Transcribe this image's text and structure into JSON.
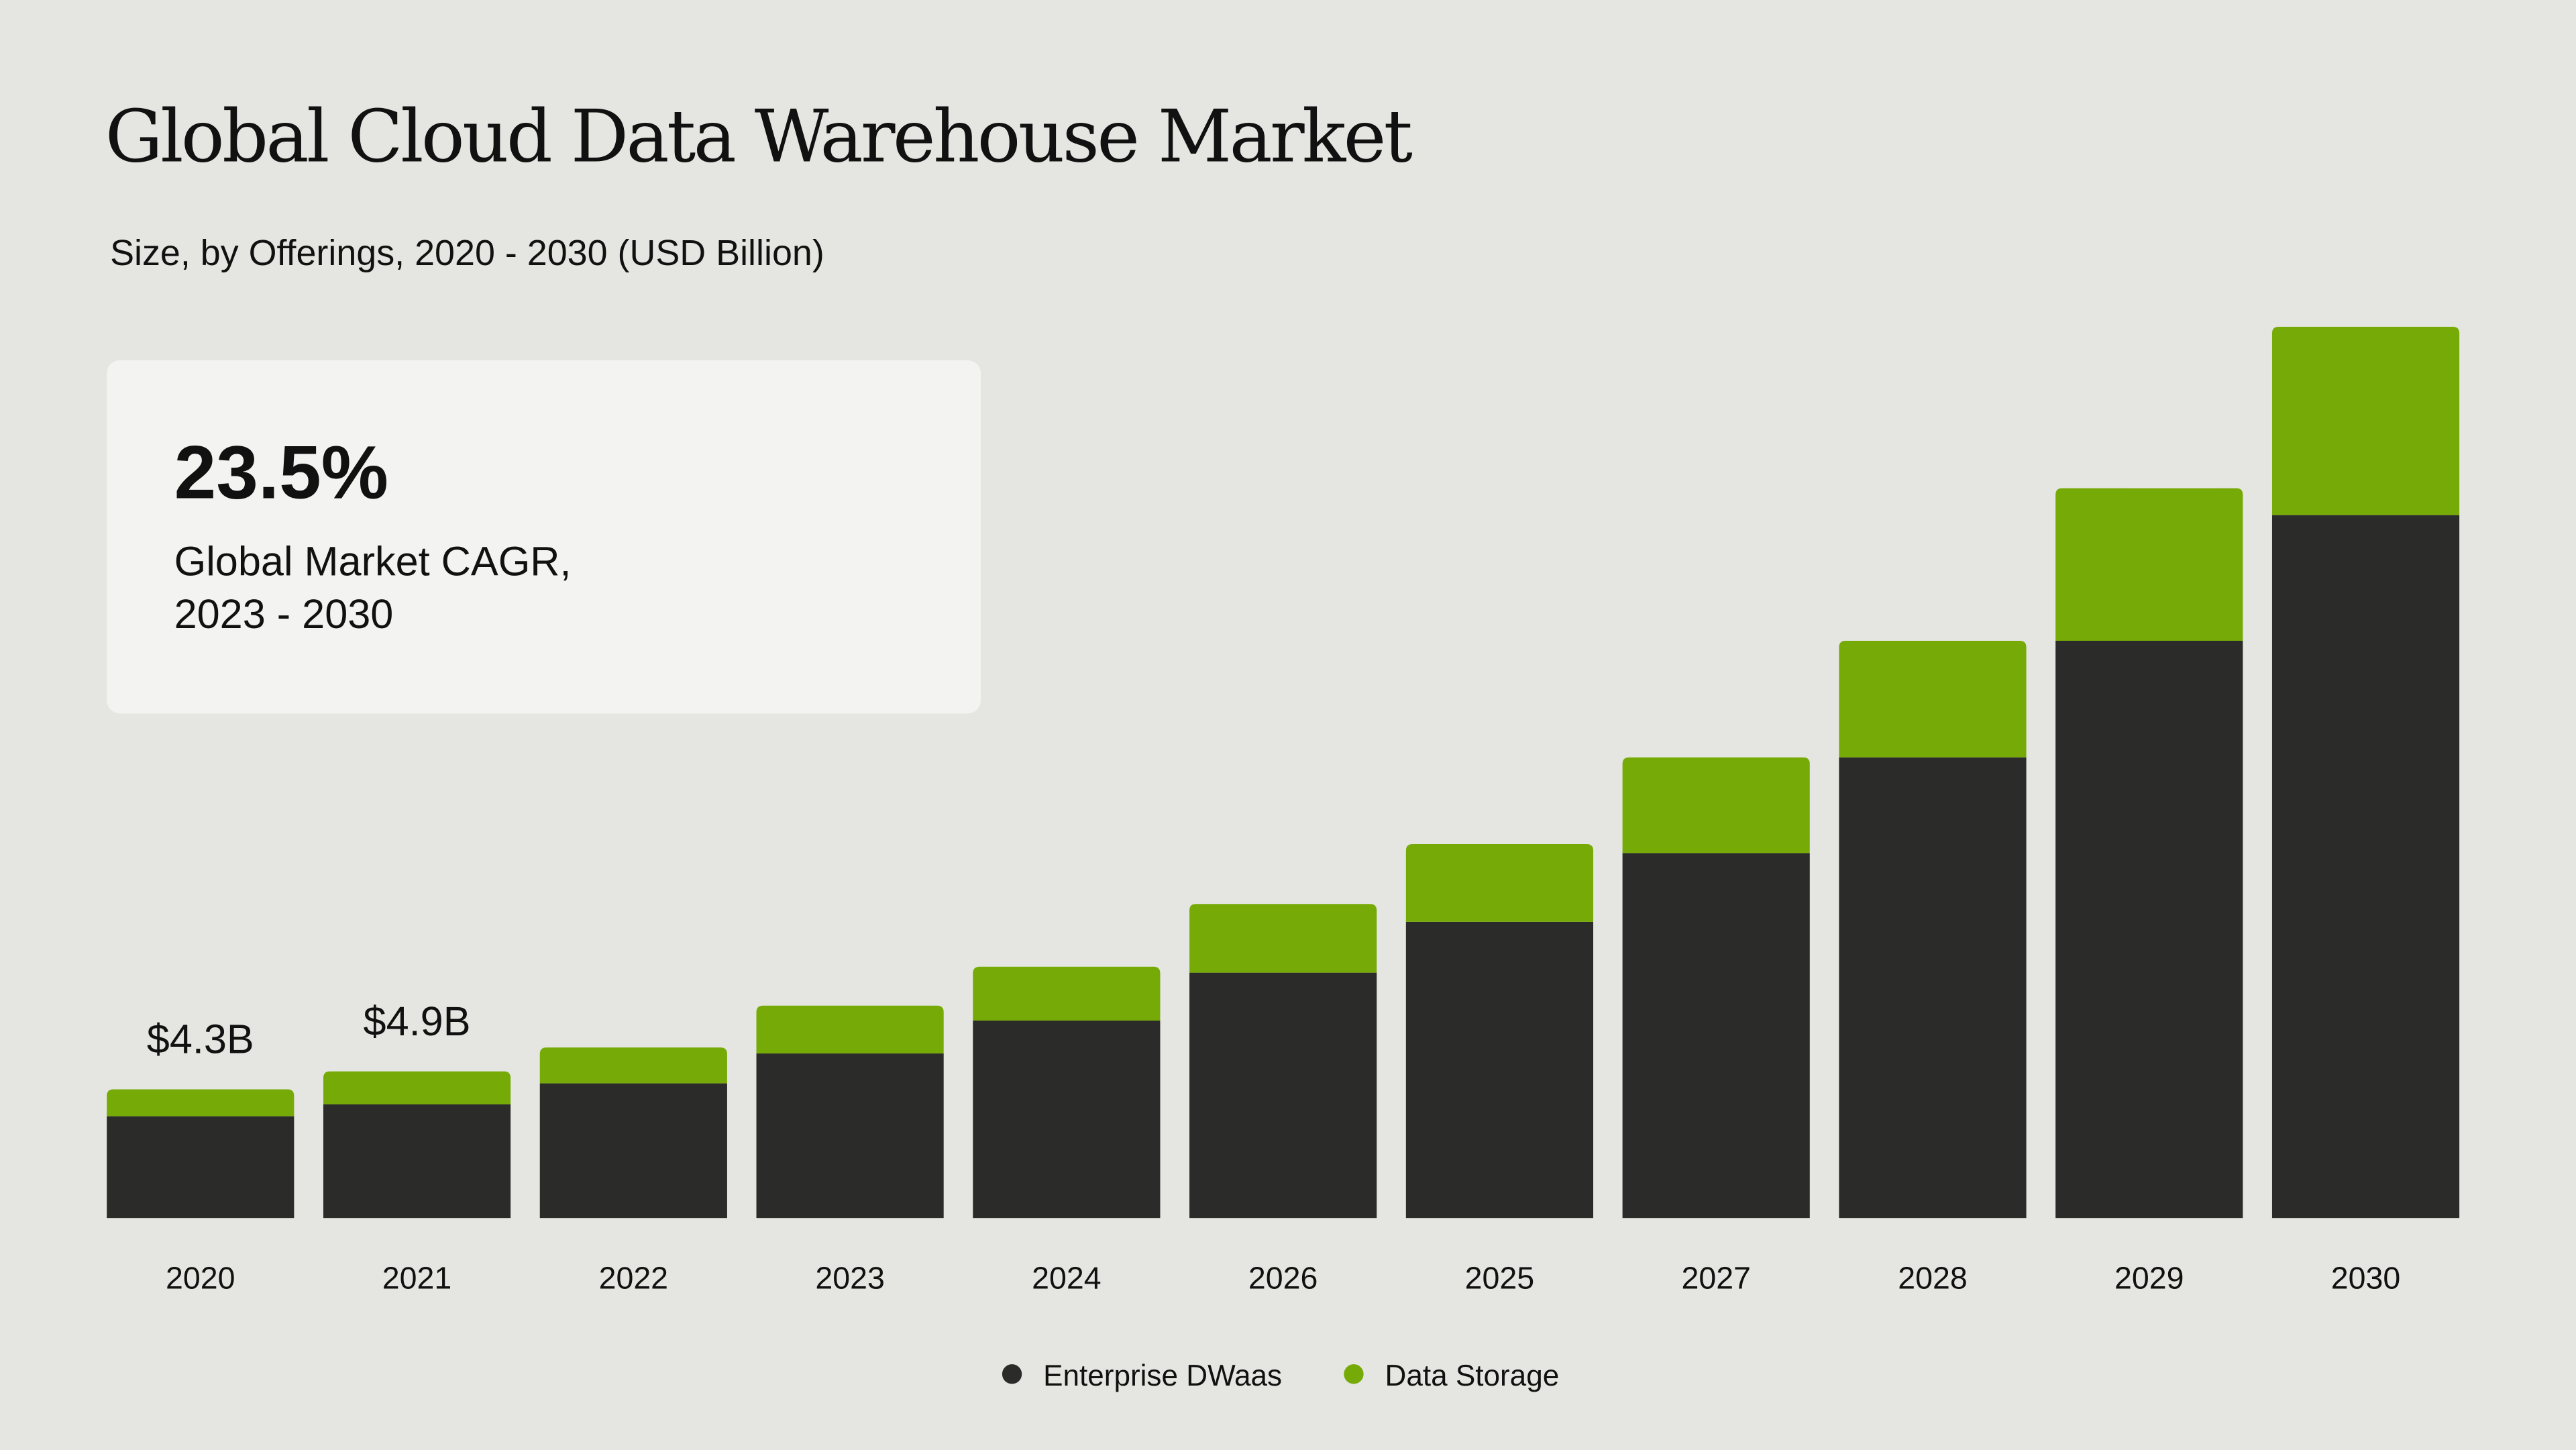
{
  "chart_data": {
    "type": "bar",
    "stacked": true,
    "title": "Global Cloud Data Warehouse Market",
    "subtitle": "Size, by Offerings, 2020 - 2030 (USD Billion)",
    "categories": [
      "2020",
      "2021",
      "2022",
      "2023",
      "2024",
      "2026",
      "2025",
      "2027",
      "2028",
      "2029",
      "2030"
    ],
    "series": [
      {
        "name": "Enterprise DWaas",
        "color": "#2b2b29",
        "values": [
          3.4,
          3.8,
          4.5,
          5.5,
          6.6,
          8.2,
          9.9,
          12.2,
          15.4,
          19.3,
          23.5
        ]
      },
      {
        "name": "Data Storage",
        "color": "#76ab07",
        "values": [
          0.9,
          1.1,
          1.2,
          1.6,
          1.8,
          2.3,
          2.6,
          3.2,
          3.9,
          5.1,
          6.3
        ]
      }
    ],
    "data_labels": [
      {
        "category": "2020",
        "text": "$4.3B"
      },
      {
        "category": "2021",
        "text": "$4.9B"
      }
    ],
    "xlabel": "",
    "ylabel": "",
    "ylim": [
      0,
      30
    ],
    "grid": false,
    "legend": "bottom-center"
  },
  "callout": {
    "value": "23.5%",
    "line1": "Global Market CAGR,",
    "line2": "2023 - 2030"
  },
  "colors": {
    "background": "#e5e6e1",
    "card": "#f3f3f1",
    "dark": "#2b2b29",
    "green": "#76ab07"
  }
}
